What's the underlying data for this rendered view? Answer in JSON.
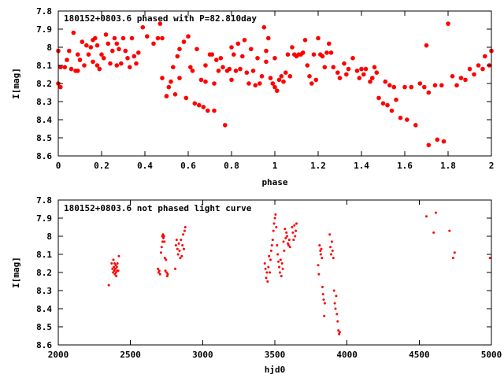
{
  "colors": {
    "points": "#ff0000",
    "axes": "#000000",
    "background": "#ffffff"
  },
  "chart_data": [
    {
      "type": "scatter",
      "title": "180152+0803.6 phased with P=82.810day",
      "xlabel": "phase",
      "ylabel": "I[mag]",
      "xlim": [
        0,
        2
      ],
      "ylim": [
        7.8,
        8.6
      ],
      "y_inverted": true,
      "grid": false,
      "legend": "none",
      "x_ticks": [
        "0",
        "0.2",
        "0.4",
        "0.6",
        "0.8",
        "1",
        "1.2",
        "1.4",
        "1.6",
        "1.8",
        "2"
      ],
      "y_ticks": [
        "7.8",
        "7.9",
        "8",
        "8.1",
        "8.2",
        "8.3",
        "8.4",
        "8.5",
        "8.6"
      ],
      "marker": "filled-circle",
      "points": [
        [
          0.0,
          8.02
        ],
        [
          0.0,
          8.2
        ],
        [
          0.01,
          8.22
        ],
        [
          0.01,
          8.11
        ],
        [
          0.03,
          8.11
        ],
        [
          0.04,
          8.07
        ],
        [
          0.05,
          8.02
        ],
        [
          0.06,
          8.12
        ],
        [
          0.07,
          7.92
        ],
        [
          0.08,
          8.13
        ],
        [
          0.09,
          8.13
        ],
        [
          0.09,
          8.04
        ],
        [
          0.1,
          8.07
        ],
        [
          0.11,
          7.97
        ],
        [
          0.12,
          8.1
        ],
        [
          0.13,
          7.99
        ],
        [
          0.14,
          8.04
        ],
        [
          0.15,
          8.0
        ],
        [
          0.16,
          8.08
        ],
        [
          0.16,
          7.96
        ],
        [
          0.17,
          7.95
        ],
        [
          0.18,
          8.1
        ],
        [
          0.18,
          7.99
        ],
        [
          0.19,
          8.12
        ],
        [
          0.2,
          8.04
        ],
        [
          0.21,
          8.06
        ],
        [
          0.22,
          7.93
        ],
        [
          0.23,
          7.98
        ],
        [
          0.24,
          8.09
        ],
        [
          0.25,
          8.02
        ],
        [
          0.26,
          7.95
        ],
        [
          0.27,
          8.1
        ],
        [
          0.27,
          7.98
        ],
        [
          0.28,
          8.01
        ],
        [
          0.29,
          8.09
        ],
        [
          0.3,
          7.95
        ],
        [
          0.31,
          8.02
        ],
        [
          0.32,
          8.06
        ],
        [
          0.33,
          8.11
        ],
        [
          0.34,
          7.95
        ],
        [
          0.35,
          8.05
        ],
        [
          0.36,
          8.09
        ],
        [
          0.37,
          8.03
        ],
        [
          0.39,
          7.89
        ],
        [
          0.41,
          7.94
        ],
        [
          0.44,
          7.98
        ],
        [
          0.46,
          7.95
        ],
        [
          0.47,
          7.87
        ],
        [
          0.48,
          7.95
        ],
        [
          0.48,
          8.17
        ],
        [
          0.5,
          8.27
        ],
        [
          0.51,
          8.22
        ],
        [
          0.52,
          8.19
        ],
        [
          0.53,
          8.11
        ],
        [
          0.54,
          8.26
        ],
        [
          0.55,
          8.05
        ],
        [
          0.56,
          8.01
        ],
        [
          0.56,
          8.17
        ],
        [
          0.58,
          7.97
        ],
        [
          0.59,
          8.28
        ],
        [
          0.6,
          7.94
        ],
        [
          0.61,
          8.11
        ],
        [
          0.62,
          8.13
        ],
        [
          0.63,
          8.31
        ],
        [
          0.64,
          8.01
        ],
        [
          0.65,
          8.32
        ],
        [
          0.66,
          8.18
        ],
        [
          0.67,
          8.33
        ],
        [
          0.68,
          8.19
        ],
        [
          0.68,
          8.1
        ],
        [
          0.69,
          8.35
        ],
        [
          0.7,
          8.04
        ],
        [
          0.71,
          8.04
        ],
        [
          0.72,
          8.35
        ],
        [
          0.72,
          8.2
        ],
        [
          0.73,
          8.07
        ],
        [
          0.74,
          8.13
        ],
        [
          0.75,
          8.06
        ],
        [
          0.76,
          8.11
        ],
        [
          0.77,
          8.43
        ],
        [
          0.78,
          8.13
        ],
        [
          0.79,
          8.12
        ],
        [
          0.8,
          8.18
        ],
        [
          0.8,
          8.0
        ],
        [
          0.81,
          8.04
        ],
        [
          0.82,
          8.13
        ],
        [
          0.83,
          7.98
        ],
        [
          0.84,
          8.12
        ],
        [
          0.85,
          8.05
        ],
        [
          0.86,
          7.96
        ],
        [
          0.87,
          8.14
        ],
        [
          0.88,
          8.2
        ],
        [
          0.89,
          8.01
        ],
        [
          0.9,
          8.13
        ],
        [
          0.91,
          8.21
        ],
        [
          0.92,
          8.06
        ],
        [
          0.93,
          8.2
        ],
        [
          0.94,
          8.16
        ],
        [
          0.95,
          7.89
        ],
        [
          0.96,
          8.02
        ],
        [
          0.96,
          8.08
        ],
        [
          0.97,
          7.95
        ],
        [
          0.98,
          8.17
        ],
        [
          0.99,
          8.2
        ],
        [
          1.0,
          8.22
        ],
        [
          1.0,
          8.06
        ],
        [
          1.01,
          8.24
        ],
        [
          1.02,
          8.18
        ],
        [
          1.03,
          8.16
        ],
        [
          1.04,
          8.19
        ],
        [
          1.05,
          8.14
        ],
        [
          1.06,
          8.04
        ],
        [
          1.07,
          8.16
        ],
        [
          1.08,
          8.0
        ],
        [
          1.09,
          8.04
        ],
        [
          1.1,
          8.05
        ],
        [
          1.11,
          8.04
        ],
        [
          1.12,
          8.04
        ],
        [
          1.13,
          8.03
        ],
        [
          1.14,
          7.96
        ],
        [
          1.15,
          8.1
        ],
        [
          1.16,
          8.16
        ],
        [
          1.17,
          8.2
        ],
        [
          1.18,
          8.04
        ],
        [
          1.19,
          8.18
        ],
        [
          1.2,
          7.95
        ],
        [
          1.21,
          8.04
        ],
        [
          1.22,
          8.05
        ],
        [
          1.23,
          8.11
        ],
        [
          1.24,
          8.03
        ],
        [
          1.25,
          7.98
        ],
        [
          1.26,
          8.03
        ],
        [
          1.27,
          8.11
        ],
        [
          1.29,
          8.14
        ],
        [
          1.3,
          8.17
        ],
        [
          1.32,
          8.09
        ],
        [
          1.33,
          8.15
        ],
        [
          1.34,
          8.12
        ],
        [
          1.36,
          8.06
        ],
        [
          1.38,
          8.13
        ],
        [
          1.39,
          8.17
        ],
        [
          1.4,
          8.12
        ],
        [
          1.41,
          8.15
        ],
        [
          1.42,
          8.12
        ],
        [
          1.44,
          8.19
        ],
        [
          1.45,
          8.17
        ],
        [
          1.46,
          8.11
        ],
        [
          1.47,
          8.14
        ],
        [
          1.48,
          8.28
        ],
        [
          1.5,
          8.31
        ],
        [
          1.51,
          8.19
        ],
        [
          1.52,
          8.32
        ],
        [
          1.53,
          8.21
        ],
        [
          1.54,
          8.35
        ],
        [
          1.55,
          8.22
        ],
        [
          1.56,
          8.29
        ],
        [
          1.58,
          8.39
        ],
        [
          1.6,
          8.22
        ],
        [
          1.61,
          8.4
        ],
        [
          1.63,
          8.22
        ],
        [
          1.65,
          8.43
        ],
        [
          1.67,
          8.2
        ],
        [
          1.69,
          8.22
        ],
        [
          1.7,
          7.99
        ],
        [
          1.71,
          8.54
        ],
        [
          1.71,
          8.25
        ],
        [
          1.74,
          8.21
        ],
        [
          1.75,
          8.51
        ],
        [
          1.77,
          8.21
        ],
        [
          1.78,
          8.52
        ],
        [
          1.8,
          7.87
        ],
        [
          1.82,
          8.16
        ],
        [
          1.84,
          8.21
        ],
        [
          1.86,
          8.17
        ],
        [
          1.88,
          8.18
        ],
        [
          1.9,
          8.12
        ],
        [
          1.92,
          8.15
        ],
        [
          1.94,
          8.1
        ],
        [
          1.96,
          8.12
        ],
        [
          1.97,
          8.05
        ],
        [
          1.99,
          8.1
        ],
        [
          2.0,
          8.02
        ]
      ]
    },
    {
      "type": "scatter",
      "title": "180152+0803.6 not phased light curve",
      "xlabel": "hjd0",
      "ylabel": "I[mag]",
      "xlim": [
        2000,
        5000
      ],
      "ylim": [
        7.8,
        8.6
      ],
      "y_inverted": true,
      "grid": false,
      "legend": "none",
      "x_ticks": [
        "2000",
        "2500",
        "3000",
        "3500",
        "4000",
        "4500",
        "5000"
      ],
      "y_ticks": [
        "7.8",
        "7.9",
        "8",
        "8.1",
        "8.2",
        "8.3",
        "8.4",
        "8.5",
        "8.6"
      ],
      "marker": "small-dot",
      "points": [
        [
          2350,
          8.27
        ],
        [
          2370,
          8.15
        ],
        [
          2375,
          8.18
        ],
        [
          2380,
          8.2
        ],
        [
          2382,
          8.13
        ],
        [
          2385,
          8.17
        ],
        [
          2388,
          8.19
        ],
        [
          2390,
          8.15
        ],
        [
          2392,
          8.21
        ],
        [
          2395,
          8.18
        ],
        [
          2398,
          8.16
        ],
        [
          2400,
          8.2
        ],
        [
          2402,
          8.22
        ],
        [
          2405,
          8.17
        ],
        [
          2408,
          8.19
        ],
        [
          2410,
          8.15
        ],
        [
          2415,
          8.19
        ],
        [
          2420,
          8.11
        ],
        [
          2690,
          8.18
        ],
        [
          2695,
          8.2
        ],
        [
          2700,
          8.19
        ],
        [
          2705,
          8.21
        ],
        [
          2712,
          8.09
        ],
        [
          2716,
          8.06
        ],
        [
          2720,
          8.0
        ],
        [
          2722,
          8.03
        ],
        [
          2725,
          7.99
        ],
        [
          2728,
          8.01
        ],
        [
          2732,
          8.0
        ],
        [
          2735,
          8.03
        ],
        [
          2738,
          8.12
        ],
        [
          2742,
          8.19
        ],
        [
          2746,
          8.13
        ],
        [
          2750,
          8.2
        ],
        [
          2755,
          8.22
        ],
        [
          2758,
          8.21
        ],
        [
          2810,
          8.18
        ],
        [
          2815,
          8.05
        ],
        [
          2820,
          8.02
        ],
        [
          2825,
          8.07
        ],
        [
          2830,
          8.1
        ],
        [
          2835,
          8.04
        ],
        [
          2840,
          8.08
        ],
        [
          2845,
          8.12
        ],
        [
          2850,
          8.02
        ],
        [
          2855,
          8.11
        ],
        [
          2860,
          8.05
        ],
        [
          2865,
          7.99
        ],
        [
          2870,
          8.07
        ],
        [
          2875,
          7.97
        ],
        [
          2880,
          7.95
        ],
        [
          3430,
          8.15
        ],
        [
          3435,
          8.18
        ],
        [
          3440,
          8.23
        ],
        [
          3445,
          8.2
        ],
        [
          3450,
          8.25
        ],
        [
          3455,
          8.17
        ],
        [
          3460,
          8.11
        ],
        [
          3465,
          8.2
        ],
        [
          3470,
          8.13
        ],
        [
          3475,
          8.08
        ],
        [
          3480,
          8.05
        ],
        [
          3485,
          8.02
        ],
        [
          3490,
          7.97
        ],
        [
          3495,
          7.93
        ],
        [
          3500,
          7.9
        ],
        [
          3505,
          7.88
        ],
        [
          3510,
          7.95
        ],
        [
          3515,
          8.05
        ],
        [
          3520,
          8.1
        ],
        [
          3525,
          8.14
        ],
        [
          3530,
          8.17
        ],
        [
          3535,
          8.2
        ],
        [
          3540,
          8.13
        ],
        [
          3545,
          8.22
        ],
        [
          3550,
          8.15
        ],
        [
          3555,
          8.18
        ],
        [
          3560,
          8.03
        ],
        [
          3565,
          8.08
        ],
        [
          3570,
          7.96
        ],
        [
          3575,
          8.01
        ],
        [
          3580,
          7.98
        ],
        [
          3585,
          8.0
        ],
        [
          3590,
          8.04
        ],
        [
          3595,
          8.05
        ],
        [
          3600,
          8.02
        ],
        [
          3605,
          8.06
        ],
        [
          3620,
          7.95
        ],
        [
          3625,
          7.98
        ],
        [
          3630,
          8.02
        ],
        [
          3635,
          7.94
        ],
        [
          3640,
          8.0
        ],
        [
          3645,
          7.97
        ],
        [
          3650,
          7.93
        ],
        [
          3800,
          8.16
        ],
        [
          3805,
          8.21
        ],
        [
          3810,
          8.05
        ],
        [
          3815,
          8.08
        ],
        [
          3818,
          8.1
        ],
        [
          3822,
          8.07
        ],
        [
          3826,
          8.12
        ],
        [
          3830,
          8.28
        ],
        [
          3834,
          8.32
        ],
        [
          3838,
          8.35
        ],
        [
          3842,
          8.44
        ],
        [
          3846,
          8.37
        ],
        [
          3880,
          7.99
        ],
        [
          3885,
          8.06
        ],
        [
          3890,
          8.1
        ],
        [
          3895,
          8.03
        ],
        [
          3900,
          8.08
        ],
        [
          3905,
          8.12
        ],
        [
          3910,
          8.3
        ],
        [
          3915,
          8.37
        ],
        [
          3920,
          8.4
        ],
        [
          3925,
          8.33
        ],
        [
          3930,
          8.43
        ],
        [
          3935,
          8.47
        ],
        [
          3940,
          8.52
        ],
        [
          3945,
          8.54
        ],
        [
          3950,
          8.53
        ],
        [
          4550,
          7.89
        ],
        [
          4600,
          7.98
        ],
        [
          4615,
          7.87
        ],
        [
          4710,
          7.97
        ],
        [
          4735,
          8.12
        ],
        [
          4745,
          8.09
        ],
        [
          4990,
          8.12
        ]
      ]
    }
  ]
}
